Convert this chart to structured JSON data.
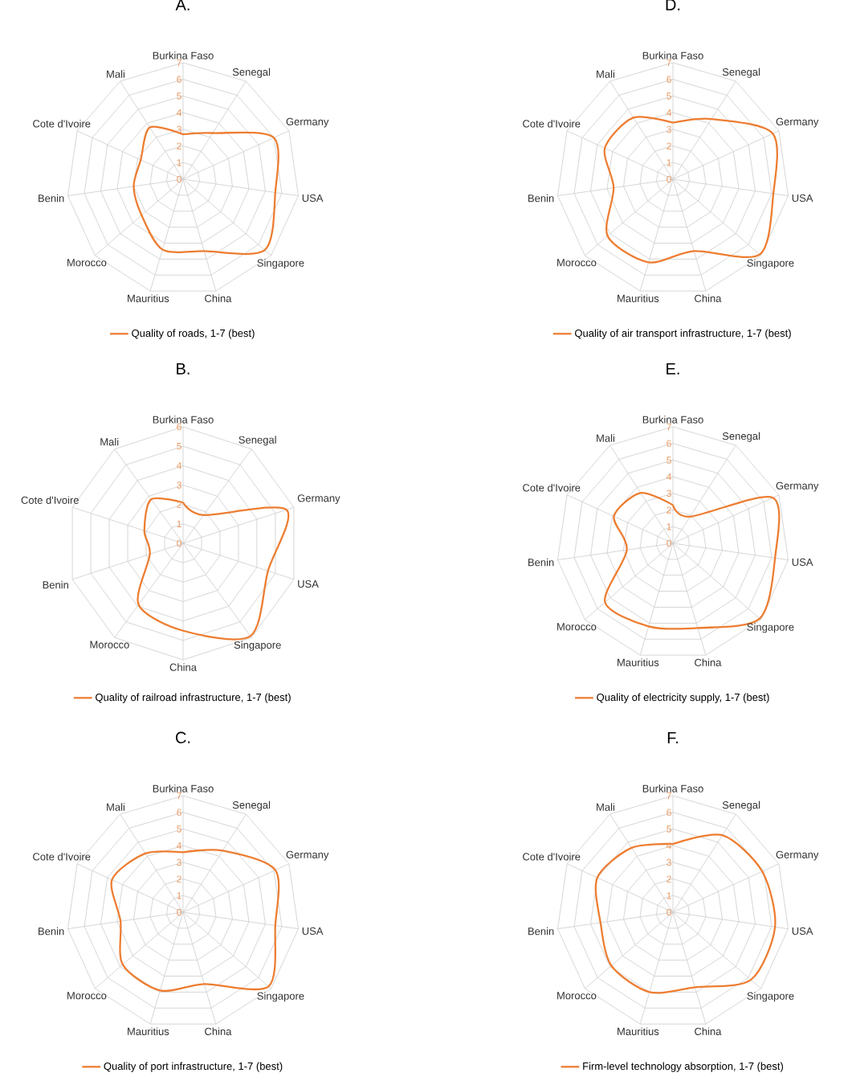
{
  "chart_data": [
    {
      "type": "radar",
      "title": "A.",
      "categories": [
        "Burkina Faso",
        "Senegal",
        "Germany",
        "USA",
        "Singapore",
        "China",
        "Mauritius",
        "Morocco",
        "Benin",
        "Cote d'Ivoire",
        "Mali"
      ],
      "series": [
        {
          "name": "Quality of roads, 1-7 (best)",
          "color": "#ed7d31",
          "values": [
            2.7,
            3.3,
            6.0,
            5.6,
            6.5,
            4.5,
            4.4,
            3.3,
            3.0,
            2.8,
            3.7
          ]
        }
      ],
      "ylim": [
        0,
        7
      ],
      "yticks": [
        0,
        1,
        2,
        3,
        4,
        5,
        6,
        7
      ],
      "grid": true,
      "legend": "bottom"
    },
    {
      "type": "radar",
      "title": "D.",
      "categories": [
        "Burkina Faso",
        "Senegal",
        "Germany",
        "USA",
        "Singapore",
        "China",
        "Mauritius",
        "Morocco",
        "Benin",
        "Cote d'Ivoire",
        "Mali"
      ],
      "series": [
        {
          "name": "Quality of air transport infrastructure, 1-7 (best)",
          "color": "#ed7d31",
          "values": [
            3.4,
            4.3,
            6.6,
            6.1,
            6.9,
            4.5,
            5.2,
            5.2,
            3.6,
            4.5,
            4.4
          ]
        }
      ],
      "ylim": [
        0,
        7
      ],
      "yticks": [
        0,
        1,
        2,
        3,
        4,
        5,
        6,
        7
      ],
      "grid": true,
      "legend": "bottom"
    },
    {
      "type": "radar",
      "title": "B.",
      "categories": [
        "Burkina Faso",
        "Senegal",
        "Germany",
        "USA",
        "Singapore",
        "China",
        "Morocco",
        "Benin",
        "Cote d'Ivoire",
        "Mali"
      ],
      "series": [
        {
          "name": "Quality of railroad infrastructure, 1-7 (best)",
          "color": "#ed7d31",
          "values": [
            2.1,
            1.8,
            5.6,
            4.6,
            5.9,
            4.5,
            3.9,
            1.8,
            2.1,
            2.8
          ]
        }
      ],
      "ylim": [
        0,
        6
      ],
      "yticks": [
        0,
        1,
        2,
        3,
        4,
        5,
        6
      ],
      "grid": true,
      "legend": "bottom"
    },
    {
      "type": "radar",
      "title": "E.",
      "categories": [
        "Burkina Faso",
        "Senegal",
        "Germany",
        "USA",
        "Singapore",
        "China",
        "Mauritius",
        "Morocco",
        "Benin",
        "Cote d'Ivoire",
        "Mali"
      ],
      "series": [
        {
          "name": "Quality of electricity supply, 1-7 (best)",
          "color": "#ed7d31",
          "values": [
            2.3,
            1.9,
            6.6,
            6.2,
            6.9,
            5.3,
            5.2,
            5.4,
            2.8,
            3.9,
            3.6
          ]
        }
      ],
      "ylim": [
        0,
        7
      ],
      "yticks": [
        0,
        1,
        2,
        3,
        4,
        5,
        6,
        7
      ],
      "grid": true,
      "legend": "bottom"
    },
    {
      "type": "radar",
      "title": "C.",
      "categories": [
        "Burkina Faso",
        "Senegal",
        "Germany",
        "USA",
        "Singapore",
        "China",
        "Mauritius",
        "Morocco",
        "Benin",
        "Cote d'Ivoire",
        "Mali"
      ],
      "series": [
        {
          "name": "Quality of port infrastructure, 1-7 (best)",
          "color": "#ed7d31",
          "values": [
            3.6,
            4.4,
            6.1,
            5.6,
            6.8,
            4.5,
            4.9,
            4.8,
            3.8,
            4.7,
            4.2
          ]
        }
      ],
      "ylim": [
        0,
        7
      ],
      "yticks": [
        0,
        1,
        2,
        3,
        4,
        5,
        6,
        7
      ],
      "grid": true,
      "legend": "bottom"
    },
    {
      "type": "radar",
      "title": "F.",
      "categories": [
        "Burkina Faso",
        "Senegal",
        "Germany",
        "USA",
        "Singapore",
        "China",
        "Mauritius",
        "Morocco",
        "Benin",
        "Cote d'Ivoire",
        "Mali"
      ],
      "series": [
        {
          "name": "Firm-level technology absorption, 1-7 (best)",
          "color": "#ed7d31",
          "values": [
            4.1,
            5.5,
            5.9,
            6.2,
            6.2,
            4.7,
            5.0,
            4.9,
            4.4,
            5.0,
            4.6
          ]
        }
      ],
      "ylim": [
        0,
        7
      ],
      "yticks": [
        0,
        1,
        2,
        3,
        4,
        5,
        6,
        7
      ],
      "grid": true,
      "legend": "bottom"
    }
  ]
}
